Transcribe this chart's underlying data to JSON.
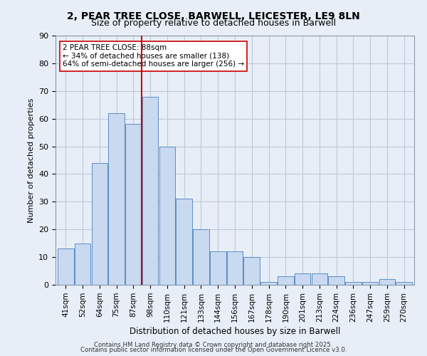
{
  "title_line1": "2, PEAR TREE CLOSE, BARWELL, LEICESTER, LE9 8LN",
  "title_line2": "Size of property relative to detached houses in Barwell",
  "xlabel": "Distribution of detached houses by size in Barwell",
  "ylabel": "Number of detached properties",
  "categories": [
    "41sqm",
    "52sqm",
    "64sqm",
    "75sqm",
    "87sqm",
    "98sqm",
    "110sqm",
    "121sqm",
    "133sqm",
    "144sqm",
    "156sqm",
    "167sqm",
    "178sqm",
    "190sqm",
    "201sqm",
    "213sqm",
    "224sqm",
    "236sqm",
    "247sqm",
    "259sqm",
    "270sqm"
  ],
  "values": [
    13,
    15,
    44,
    62,
    58,
    68,
    50,
    31,
    20,
    12,
    12,
    10,
    1,
    3,
    4,
    4,
    3,
    1,
    1,
    2,
    1
  ],
  "bar_color": "#c9d9f0",
  "bar_edge_color": "#5a8dc8",
  "grid_color": "#c0c8d8",
  "background_color": "#e8eef7",
  "vline_x": 4.5,
  "vline_color": "#cc0000",
  "annotation_text": "2 PEAR TREE CLOSE: 88sqm\n← 34% of detached houses are smaller (138)\n64% of semi-detached houses are larger (256) →",
  "annotation_box_color": "#ffffff",
  "annotation_box_edge": "#cc0000",
  "footer_line1": "Contains HM Land Registry data © Crown copyright and database right 2025.",
  "footer_line2": "Contains public sector information licensed under the Open Government Licence v3.0.",
  "ylim": [
    0,
    90
  ],
  "yticks": [
    0,
    10,
    20,
    30,
    40,
    50,
    60,
    70,
    80,
    90
  ]
}
